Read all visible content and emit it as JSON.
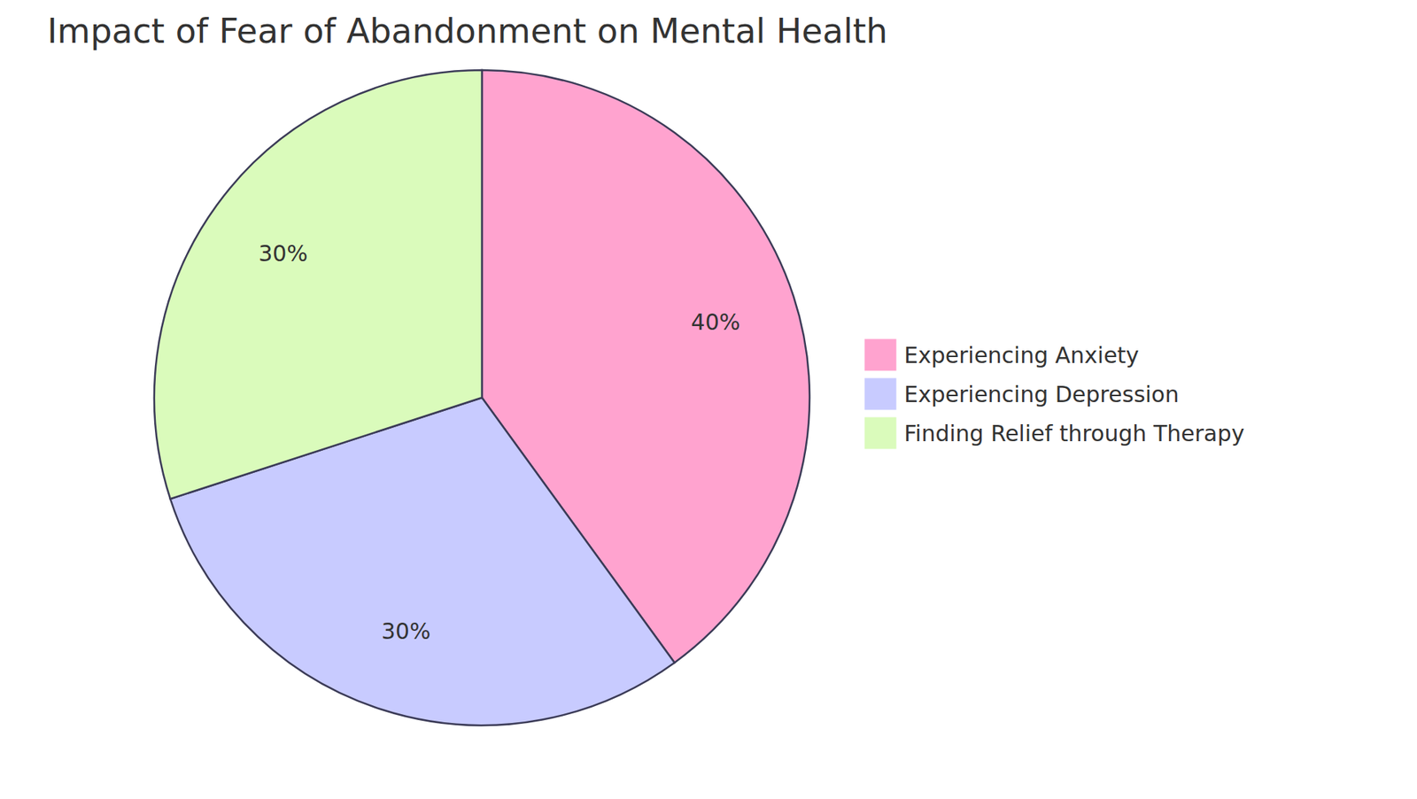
{
  "chart_data": {
    "type": "pie",
    "title": "Impact of Fear of Abandonment on Mental Health",
    "categories": [
      "Experiencing Anxiety",
      "Experiencing Depression",
      "Finding Relief through Therapy"
    ],
    "values": [
      40,
      30,
      30
    ],
    "value_labels": [
      "40%",
      "30%",
      "30%"
    ],
    "colors": [
      "#ffa3cf",
      "#c8cbff",
      "#dafbbb"
    ],
    "data_labels": true,
    "legend": "right"
  }
}
